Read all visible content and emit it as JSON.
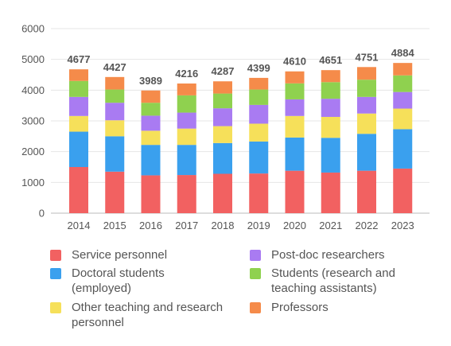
{
  "chart_data": {
    "type": "bar",
    "stacked": true,
    "categories": [
      "2014",
      "2015",
      "2016",
      "2017",
      "2018",
      "2019",
      "2020",
      "2021",
      "2022",
      "2023"
    ],
    "ylim": [
      0,
      6000
    ],
    "yticks": [
      0,
      1000,
      2000,
      3000,
      4000,
      5000,
      6000
    ],
    "grid": true,
    "legend_position": "bottom",
    "totals": [
      4677,
      4427,
      3989,
      4216,
      4287,
      4399,
      4610,
      4651,
      4751,
      4884
    ],
    "series": [
      {
        "name": "Service personnel",
        "color": "#f26161",
        "values": [
          1500,
          1350,
          1230,
          1240,
          1280,
          1290,
          1380,
          1320,
          1380,
          1450
        ]
      },
      {
        "name": "Doctoral students (employed)",
        "color": "#3aa0ee",
        "values": [
          1150,
          1150,
          990,
          980,
          1000,
          1040,
          1080,
          1130,
          1200,
          1280
        ]
      },
      {
        "name": "Other teaching and research personnel",
        "color": "#f6e05a",
        "values": [
          510,
          520,
          460,
          530,
          550,
          580,
          700,
          680,
          660,
          670
        ]
      },
      {
        "name": "Post-doc researchers",
        "color": "#a97bf2",
        "values": [
          620,
          570,
          490,
          520,
          580,
          610,
          540,
          590,
          540,
          540
        ]
      },
      {
        "name": "Students (research and teaching assistants)",
        "color": "#8fd14f",
        "values": [
          520,
          430,
          420,
          560,
          480,
          500,
          520,
          540,
          560,
          540
        ]
      },
      {
        "name": "Professors",
        "color": "#f58b4a",
        "values": [
          377,
          407,
          399,
          386,
          397,
          379,
          390,
          391,
          411,
          404
        ]
      }
    ]
  }
}
